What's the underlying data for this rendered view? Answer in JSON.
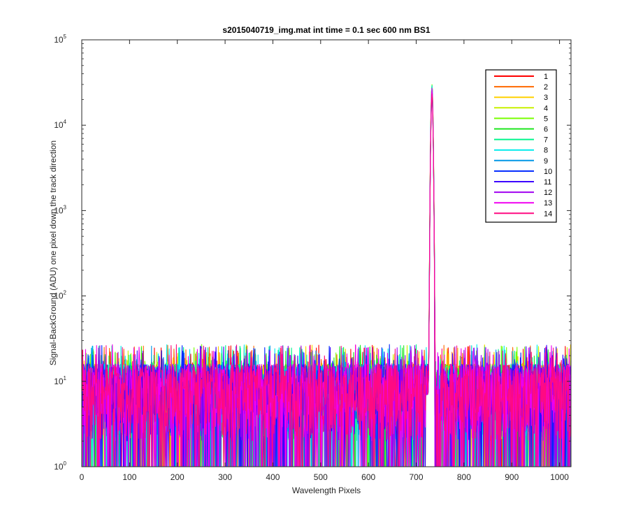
{
  "chart_data": {
    "type": "line",
    "title": "s2015040719_img.mat int time = 0.1 sec  600 nm BS1",
    "xlabel": "Wavelength Pixels",
    "ylabel": "Signal-BackGround (ADU) one pixel down the track direction",
    "xlim": [
      0,
      1024
    ],
    "ylim": [
      1,
      100000
    ],
    "yscale": "log",
    "x_ticks": [
      "0",
      "100",
      "200",
      "300",
      "400",
      "500",
      "600",
      "700",
      "800",
      "900",
      "1000"
    ],
    "y_ticks": [
      {
        "base": "10",
        "exp": "0"
      },
      {
        "base": "10",
        "exp": "1"
      },
      {
        "base": "10",
        "exp": "2"
      },
      {
        "base": "10",
        "exp": "3"
      },
      {
        "base": "10",
        "exp": "4"
      },
      {
        "base": "10",
        "exp": "5"
      }
    ],
    "grid": false,
    "legend_position": "top-right",
    "peak": {
      "x": 733,
      "y": 30000
    },
    "noise_floor": {
      "min": 1,
      "typical": 7,
      "max": 27
    },
    "series": [
      {
        "name": "1",
        "color": "#ff0000"
      },
      {
        "name": "2",
        "color": "#ff6a00"
      },
      {
        "name": "3",
        "color": "#ffd200"
      },
      {
        "name": "4",
        "color": "#c8f000"
      },
      {
        "name": "5",
        "color": "#78ff00"
      },
      {
        "name": "6",
        "color": "#1ee61e"
      },
      {
        "name": "7",
        "color": "#00f58c"
      },
      {
        "name": "8",
        "color": "#00ebeb"
      },
      {
        "name": "9",
        "color": "#0096e6"
      },
      {
        "name": "10",
        "color": "#0028ff"
      },
      {
        "name": "11",
        "color": "#3c00ff"
      },
      {
        "name": "12",
        "color": "#a000f0"
      },
      {
        "name": "13",
        "color": "#f000f0"
      },
      {
        "name": "14",
        "color": "#ff0a82"
      }
    ]
  }
}
